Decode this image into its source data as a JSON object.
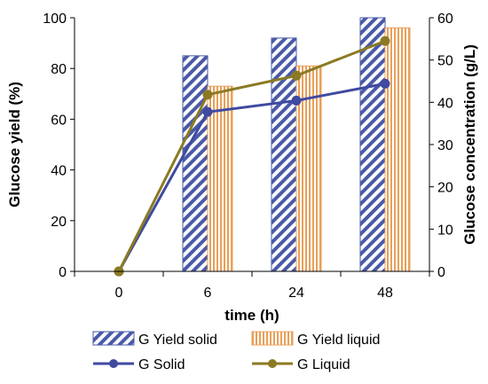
{
  "chart_data": {
    "type": "bar",
    "categories": [
      "0",
      "6",
      "24",
      "48"
    ],
    "xlabel": "time (h)",
    "ylabel": "Glucose yield (%)",
    "y2label": "Glucose concentration (g/L)",
    "ylim": [
      0,
      100
    ],
    "y2lim": [
      0,
      60
    ],
    "yticks": [
      "0",
      "20",
      "40",
      "60",
      "80",
      "100"
    ],
    "y2ticks": [
      "0",
      "10",
      "20",
      "30",
      "40",
      "50",
      "60"
    ],
    "grid": false,
    "legend_position": "bottom",
    "series": [
      {
        "name": "G Yield solid",
        "kind": "bar",
        "axis": "left",
        "color": "#4a5aa8",
        "pattern": "diagonal-stripes",
        "values": [
          null,
          85,
          92,
          100
        ]
      },
      {
        "name": "G Yield liquid",
        "kind": "bar",
        "axis": "left",
        "color": "#e8a05a",
        "pattern": "vertical-stripes",
        "values": [
          null,
          73,
          81,
          96
        ]
      },
      {
        "name": "G Solid",
        "kind": "line",
        "axis": "right",
        "color": "#3f4aa0",
        "values": [
          0,
          37.7,
          40.4,
          44.4
        ]
      },
      {
        "name": "G Liquid",
        "kind": "line",
        "axis": "right",
        "color": "#8b7a22",
        "values": [
          0,
          41.8,
          46.3,
          54.5
        ]
      }
    ]
  }
}
